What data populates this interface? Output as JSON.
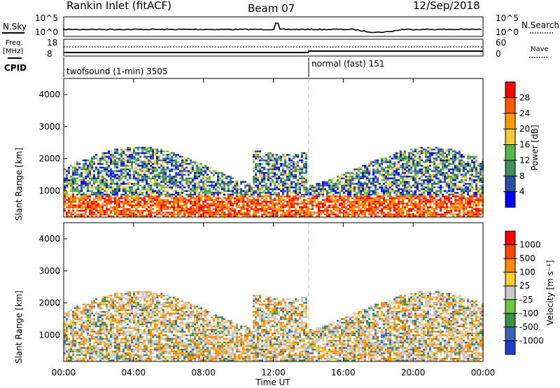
{
  "header": {
    "station": "Rankin Inlet (fitACF)",
    "beam": "Beam 07",
    "date": "12/Sep/2018"
  },
  "noise_panel": {
    "left_label": "N.Sky",
    "left_ticks": [
      "10^5",
      "10^0"
    ],
    "right_label": "N.Search",
    "right_ticks": [
      "10^5",
      "10^0"
    ]
  },
  "freq_panel": {
    "left_label_1": "Freq.",
    "left_label_2": "[MHz]",
    "left_ticks": [
      "18",
      "8"
    ],
    "right_label": "Nave",
    "right_ticks": [
      "60",
      "0"
    ]
  },
  "cpid_panel": {
    "label": "CPID",
    "modes": [
      "twofsound (1-min) 3505",
      "normal (fast) 151"
    ]
  },
  "chart_data": [
    {
      "type": "heatmap",
      "name": "power",
      "ylabel": "Slant Range [km]",
      "colorbar_label": "Power [dB]",
      "colorbar_ticks": [
        "28",
        "24",
        "20",
        "16",
        "12",
        "8",
        "4"
      ],
      "colorbar_colors": [
        "#0000ff",
        "#2a4ea8",
        "#3f8f5f",
        "#55b84b",
        "#f0c83a",
        "#ff9900",
        "#ff5a00",
        "#ff0000"
      ],
      "yticks": [
        "4000",
        "3000",
        "2000",
        "1000"
      ],
      "ylim": [
        180,
        4500
      ],
      "xlim": [
        "00:00",
        "24:00"
      ]
    },
    {
      "type": "heatmap",
      "name": "velocity",
      "ylabel": "Slant Range [km]",
      "colorbar_label": "Velocity [m s⁻¹]",
      "colorbar_ticks": [
        "1000",
        "500",
        "100",
        "25",
        "-25",
        "-100",
        "-500",
        "-1000"
      ],
      "colorbar_colors": [
        "#1f3bd0",
        "#3a63b8",
        "#3e8f4a",
        "#6cc83e",
        "#c8c8c8",
        "#ffcc33",
        "#ff8c00",
        "#ff4500",
        "#ff0000"
      ],
      "yticks": [
        "4000",
        "3000",
        "2000",
        "1000"
      ],
      "ylim": [
        180,
        4500
      ],
      "xlim": [
        "00:00",
        "24:00"
      ]
    }
  ],
  "xaxis": {
    "ticks": [
      "00:00",
      "04:00",
      "08:00",
      "12:00",
      "16:00",
      "20:00",
      "00:00"
    ],
    "label": "Time UT"
  }
}
